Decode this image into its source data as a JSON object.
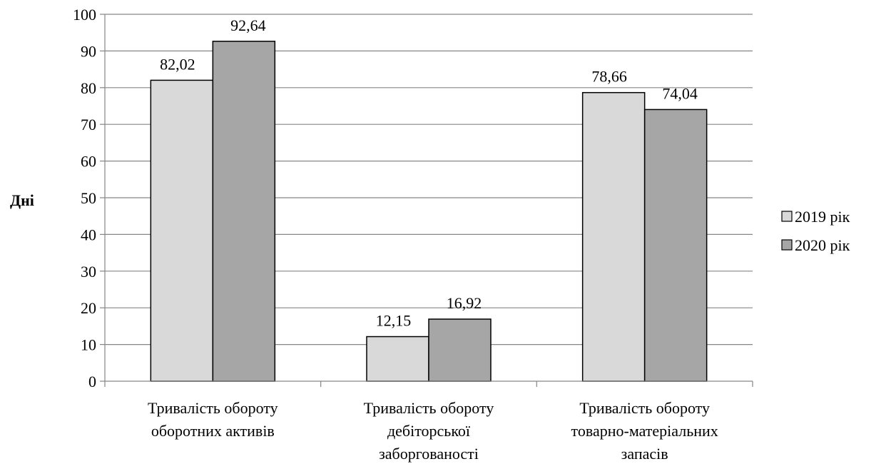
{
  "chart_data": {
    "type": "bar",
    "title": "",
    "xlabel": "",
    "ylabel": "Дні",
    "ylim": [
      0,
      100
    ],
    "ytick_step": 10,
    "grid": true,
    "legend_position": "right",
    "categories": [
      [
        "Тривалість обороту",
        "оборотних активів"
      ],
      [
        "Тривалість обороту",
        "дебіторської",
        "заборгованості"
      ],
      [
        "Тривалість обороту",
        "товарно-матеріальних",
        "запасів"
      ]
    ],
    "series": [
      {
        "name": "2019 рік",
        "color": "#d9d9d9",
        "values": [
          82.02,
          12.15,
          78.66
        ],
        "labels": [
          "82,02",
          "12,15",
          "78,66"
        ]
      },
      {
        "name": "2020 рік",
        "color": "#a6a6a6",
        "values": [
          92.64,
          16.92,
          74.04
        ],
        "labels": [
          "92,64",
          "16,92",
          "74,04"
        ]
      }
    ]
  }
}
